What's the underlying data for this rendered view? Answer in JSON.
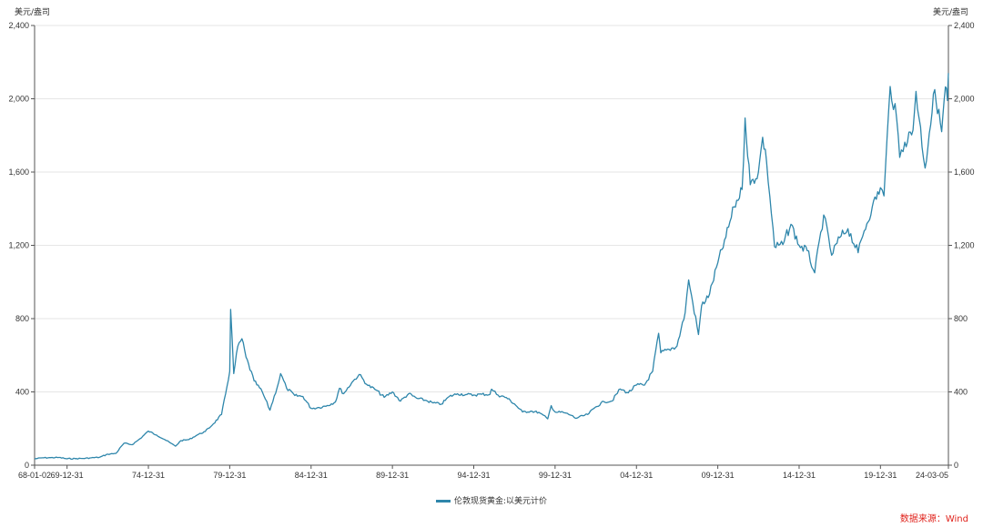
{
  "chart_data": {
    "type": "line",
    "y_unit_left": "美元/盎司",
    "y_unit_right": "美元/盎司",
    "ylim": [
      0,
      2400
    ],
    "yticks": [
      0,
      400,
      800,
      1200,
      1600,
      2000,
      2400
    ],
    "ytick_labels": [
      "0",
      "400",
      "800",
      "1,200",
      "1,600",
      "2,000",
      "2,400"
    ],
    "xlim": [
      "1968-01-02",
      "2024-03-05"
    ],
    "xticks": [
      {
        "date": "1968-01-02",
        "label": "68-01-02"
      },
      {
        "date": "1969-12-31",
        "label": "69-12-31"
      },
      {
        "date": "1974-12-31",
        "label": "74-12-31"
      },
      {
        "date": "1979-12-31",
        "label": "79-12-31"
      },
      {
        "date": "1984-12-31",
        "label": "84-12-31"
      },
      {
        "date": "1989-12-31",
        "label": "89-12-31"
      },
      {
        "date": "1994-12-31",
        "label": "94-12-31"
      },
      {
        "date": "1999-12-31",
        "label": "99-12-31"
      },
      {
        "date": "2004-12-31",
        "label": "04-12-31"
      },
      {
        "date": "2009-12-31",
        "label": "09-12-31"
      },
      {
        "date": "2014-12-31",
        "label": "14-12-31"
      },
      {
        "date": "2019-12-31",
        "label": "19-12-31"
      },
      {
        "date": "2024-03-05",
        "label": "24-03-05"
      }
    ],
    "grid": true,
    "legend_position": "bottom-center",
    "series": [
      {
        "name": "伦敦现货黄金:以美元计价",
        "color": "#2e86ab",
        "points": [
          [
            "1968-01-02",
            35
          ],
          [
            "1968-06-30",
            40
          ],
          [
            "1968-12-31",
            41
          ],
          [
            "1969-06-30",
            42
          ],
          [
            "1969-12-31",
            35
          ],
          [
            "1970-06-30",
            36
          ],
          [
            "1970-12-31",
            37
          ],
          [
            "1971-06-30",
            40
          ],
          [
            "1971-12-31",
            43
          ],
          [
            "1972-06-30",
            60
          ],
          [
            "1972-12-31",
            64
          ],
          [
            "1973-06-30",
            120
          ],
          [
            "1973-12-31",
            112
          ],
          [
            "1974-06-30",
            145
          ],
          [
            "1974-12-31",
            186
          ],
          [
            "1975-06-30",
            165
          ],
          [
            "1975-12-31",
            140
          ],
          [
            "1976-08-31",
            104
          ],
          [
            "1976-12-31",
            134
          ],
          [
            "1977-06-30",
            140
          ],
          [
            "1977-12-31",
            165
          ],
          [
            "1978-06-30",
            184
          ],
          [
            "1978-12-31",
            226
          ],
          [
            "1979-06-30",
            277
          ],
          [
            "1979-10-01",
            390
          ],
          [
            "1979-12-31",
            512
          ],
          [
            "1980-01-21",
            850
          ],
          [
            "1980-03-31",
            500
          ],
          [
            "1980-06-30",
            650
          ],
          [
            "1980-09-30",
            690
          ],
          [
            "1980-12-31",
            590
          ],
          [
            "1981-06-30",
            460
          ],
          [
            "1981-12-31",
            400
          ],
          [
            "1982-06-21",
            300
          ],
          [
            "1982-12-31",
            450
          ],
          [
            "1983-02-15",
            500
          ],
          [
            "1983-06-30",
            420
          ],
          [
            "1983-12-31",
            380
          ],
          [
            "1984-06-30",
            375
          ],
          [
            "1984-12-31",
            310
          ],
          [
            "1985-06-30",
            315
          ],
          [
            "1985-12-31",
            326
          ],
          [
            "1986-06-30",
            345
          ],
          [
            "1986-09-30",
            420
          ],
          [
            "1986-12-31",
            390
          ],
          [
            "1987-06-30",
            450
          ],
          [
            "1987-12-14",
            495
          ],
          [
            "1988-06-30",
            435
          ],
          [
            "1988-12-31",
            410
          ],
          [
            "1989-06-30",
            370
          ],
          [
            "1989-12-31",
            400
          ],
          [
            "1990-06-30",
            350
          ],
          [
            "1990-12-31",
            390
          ],
          [
            "1991-06-30",
            365
          ],
          [
            "1991-12-31",
            355
          ],
          [
            "1992-06-30",
            340
          ],
          [
            "1992-12-31",
            333
          ],
          [
            "1993-06-30",
            375
          ],
          [
            "1993-12-31",
            390
          ],
          [
            "1994-06-30",
            385
          ],
          [
            "1994-12-31",
            383
          ],
          [
            "1995-06-30",
            387
          ],
          [
            "1995-12-31",
            387
          ],
          [
            "1996-02-05",
            415
          ],
          [
            "1996-06-30",
            382
          ],
          [
            "1996-12-31",
            369
          ],
          [
            "1997-06-30",
            335
          ],
          [
            "1997-12-31",
            290
          ],
          [
            "1998-06-30",
            295
          ],
          [
            "1998-12-31",
            288
          ],
          [
            "1999-07-20",
            253
          ],
          [
            "1999-10-05",
            325
          ],
          [
            "1999-12-31",
            290
          ],
          [
            "2000-06-30",
            288
          ],
          [
            "2000-12-31",
            272
          ],
          [
            "2001-04-02",
            256
          ],
          [
            "2001-12-31",
            277
          ],
          [
            "2002-06-30",
            318
          ],
          [
            "2002-12-31",
            347
          ],
          [
            "2003-06-30",
            350
          ],
          [
            "2003-12-31",
            416
          ],
          [
            "2004-06-30",
            395
          ],
          [
            "2004-12-31",
            438
          ],
          [
            "2005-06-30",
            437
          ],
          [
            "2005-12-31",
            513
          ],
          [
            "2006-05-12",
            720
          ],
          [
            "2006-06-30",
            613
          ],
          [
            "2006-12-31",
            632
          ],
          [
            "2007-06-30",
            650
          ],
          [
            "2007-12-31",
            834
          ],
          [
            "2008-03-17",
            1011
          ],
          [
            "2008-10-24",
            713
          ],
          [
            "2008-12-31",
            870
          ],
          [
            "2009-06-30",
            934
          ],
          [
            "2009-12-31",
            1104
          ],
          [
            "2010-06-30",
            1244
          ],
          [
            "2010-12-31",
            1410
          ],
          [
            "2011-06-30",
            1505
          ],
          [
            "2011-09-05",
            1895
          ],
          [
            "2011-12-31",
            1531
          ],
          [
            "2012-06-30",
            1598
          ],
          [
            "2012-10-04",
            1790
          ],
          [
            "2012-12-31",
            1657
          ],
          [
            "2013-06-28",
            1192
          ],
          [
            "2013-12-31",
            1204
          ],
          [
            "2014-06-30",
            1315
          ],
          [
            "2014-12-31",
            1199
          ],
          [
            "2015-06-30",
            1171
          ],
          [
            "2015-12-17",
            1050
          ],
          [
            "2016-07-06",
            1366
          ],
          [
            "2016-12-31",
            1146
          ],
          [
            "2017-06-30",
            1242
          ],
          [
            "2017-12-31",
            1291
          ],
          [
            "2018-08-16",
            1160
          ],
          [
            "2018-12-31",
            1279
          ],
          [
            "2019-06-30",
            1409
          ],
          [
            "2019-12-31",
            1515
          ],
          [
            "2020-03-19",
            1470
          ],
          [
            "2020-08-06",
            2067
          ],
          [
            "2020-12-31",
            1888
          ],
          [
            "2021-03-08",
            1680
          ],
          [
            "2021-06-30",
            1763
          ],
          [
            "2021-12-31",
            1829
          ],
          [
            "2022-03-08",
            2040
          ],
          [
            "2022-09-28",
            1622
          ],
          [
            "2022-12-31",
            1812
          ],
          [
            "2023-05-04",
            2050
          ],
          [
            "2023-10-05",
            1820
          ],
          [
            "2023-12-28",
            2065
          ],
          [
            "2024-02-14",
            1990
          ],
          [
            "2024-03-05",
            2140
          ]
        ]
      }
    ]
  },
  "source_note": "数据来源：Wind",
  "source_color": "#e0231c"
}
